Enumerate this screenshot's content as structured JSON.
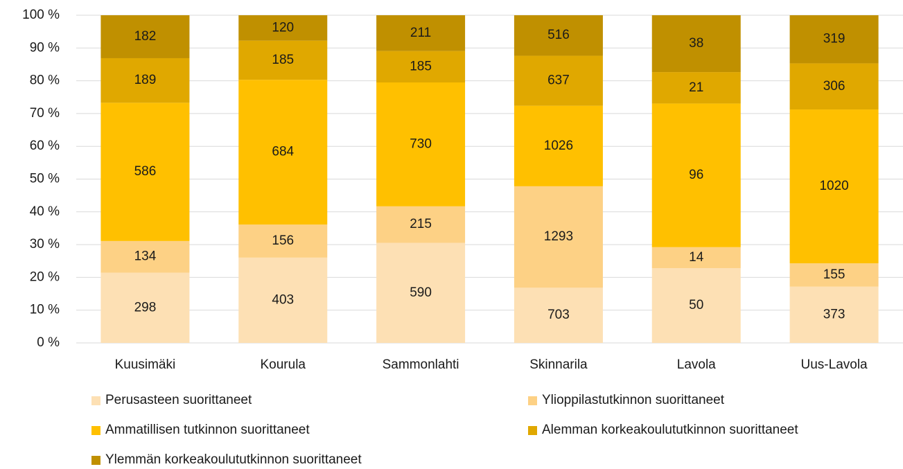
{
  "chart_data": {
    "type": "bar",
    "stacked": "percent",
    "categories": [
      "Kuusimäki",
      "Kourula",
      "Sammonlahti",
      "Skinnarila",
      "Lavola",
      "Uus-Lavola"
    ],
    "series": [
      {
        "name": "Perusasteen suorittaneet",
        "color": "#fde0b4",
        "values": [
          298,
          403,
          590,
          703,
          50,
          373
        ]
      },
      {
        "name": "Ylioppilastutkinnon suorittaneet",
        "color": "#fdd185",
        "values": [
          134,
          156,
          215,
          1293,
          14,
          155
        ]
      },
      {
        "name": "Ammatillisen tutkinnon suorittaneet",
        "color": "#ffc000",
        "values": [
          586,
          684,
          730,
          1026,
          96,
          1020
        ]
      },
      {
        "name": "Alemman korkeakoulututkinnon suorittaneet",
        "color": "#e0a800",
        "values": [
          189,
          185,
          185,
          637,
          21,
          306
        ]
      },
      {
        "name": "Ylemmän korkeakoulututkinnon suorittaneet",
        "color": "#c09000",
        "values": [
          182,
          120,
          211,
          516,
          38,
          319
        ]
      }
    ],
    "ylim": [
      0,
      100
    ],
    "yticks": [
      {
        "value": 0,
        "label": "0 %"
      },
      {
        "value": 10,
        "label": "10 %"
      },
      {
        "value": 20,
        "label": "20 %"
      },
      {
        "value": 30,
        "label": "30 %"
      },
      {
        "value": 40,
        "label": "40 %"
      },
      {
        "value": 50,
        "label": "50 %"
      },
      {
        "value": 60,
        "label": "60 %"
      },
      {
        "value": 70,
        "label": "70 %"
      },
      {
        "value": 80,
        "label": "80 %"
      },
      {
        "value": 90,
        "label": "90 %"
      },
      {
        "value": 100,
        "label": "100 %"
      }
    ],
    "grid": true,
    "legend": "bottom"
  }
}
